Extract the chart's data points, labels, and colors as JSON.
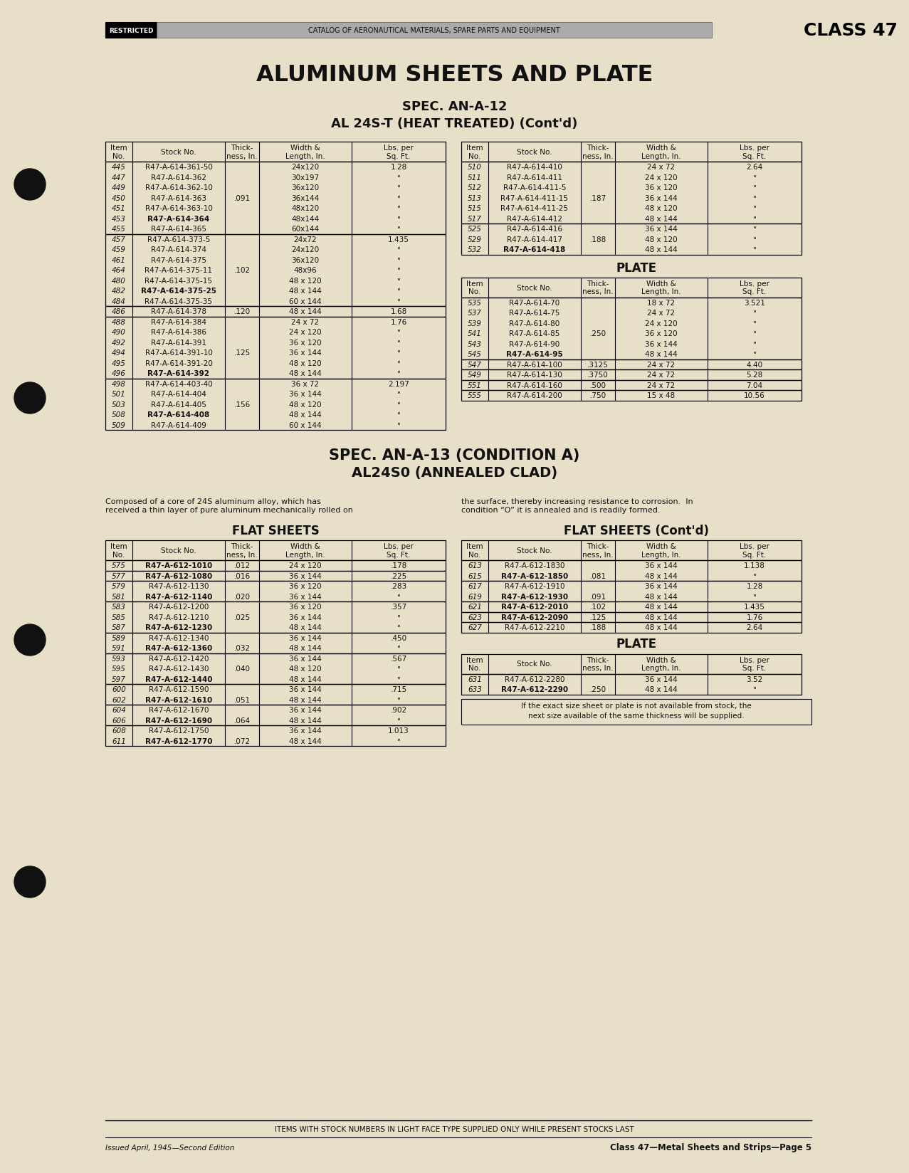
{
  "page_bg": "#e8dfc8",
  "title": "ALUMINUM SHEETS AND PLATE",
  "spec_line1": "SPEC. AN-A-12",
  "spec_line2": "AL 24S-T (HEAT TREATED) (Cont'd)",
  "spec2_line1": "SPEC. AN-A-13 (CONDITION A)",
  "spec2_line2": "AL24S0 (ANNEALED CLAD)",
  "footer_line1": "ITEMS WITH STOCK NUMBERS IN LIGHT FACE TYPE SUPPLIED ONLY WHILE PRESENT STOCKS LAST",
  "footer_line2": "Issued April, 1945—Second Edition",
  "footer_line3": "Class 47—Metal Sheets and Strips—Page 5",
  "desc_left": "Composed of a core of 24S aluminum alloy, which has\nreceived a thin layer of pure aluminum mechanically rolled on",
  "desc_right": "the surface, thereby increasing resistance to corrosion.  In\ncondition “O” it is annealed and is readily formed.",
  "col_headers": [
    "Item\nNo.",
    "Stock No.",
    "Thick-\nness, In.",
    "Width &\nLength, In.",
    "Lbs. per\nSq. Ft."
  ],
  "left_groups_top": [
    {
      "thickness": ".091",
      "rows": [
        [
          "445",
          "R47-A-614-361-50",
          "24x120",
          "1.28"
        ],
        [
          "447",
          "R47-A-614-362",
          "30x197",
          "\""
        ],
        [
          "449",
          "R47-A-614-362-10",
          "36x120",
          "\""
        ],
        [
          "450",
          "R47-A-614-363",
          "36x144",
          "\""
        ],
        [
          "451",
          "R47-A-614-363-10",
          "48x120",
          "\""
        ],
        [
          "453",
          "R47-A-614-364",
          "48x144",
          "\""
        ],
        [
          "455",
          "R47-A-614-365",
          "60x144",
          "\""
        ]
      ],
      "bold_items": [
        "453"
      ]
    },
    {
      "thickness": ".102",
      "rows": [
        [
          "457",
          "R47-A-614-373-5",
          "24x72",
          "1.435"
        ],
        [
          "459",
          "R47-A-614-374",
          "24x120",
          "\""
        ],
        [
          "461",
          "R47-A-614-375",
          "36x120",
          "\""
        ],
        [
          "464",
          "R47-A-614-375-11",
          "48x96",
          "\""
        ],
        [
          "480",
          "R47-A-614-375-15",
          "48 x 120",
          "\""
        ],
        [
          "482",
          "R47-A-614-375-25",
          "48 x 144",
          "\""
        ],
        [
          "484",
          "R47-A-614-375-35",
          "60 x 144",
          "\""
        ]
      ],
      "bold_items": [
        "482"
      ]
    },
    {
      "thickness": ".120",
      "rows": [
        [
          "486",
          "R47-A-614-378",
          "48 x 144",
          "1.68"
        ]
      ],
      "bold_items": []
    },
    {
      "thickness": ".125",
      "rows": [
        [
          "488",
          "R47-A-614-384",
          "24 x 72",
          "1.76"
        ],
        [
          "490",
          "R47-A-614-386",
          "24 x 120",
          "\""
        ],
        [
          "492",
          "R47-A-614-391",
          "36 x 120",
          "\""
        ],
        [
          "494",
          "R47-A-614-391-10",
          "36 x 144",
          "\""
        ],
        [
          "495",
          "R47-A-614-391-20",
          "48 x 120",
          "\""
        ],
        [
          "496",
          "R47-A-614-392",
          "48 x 144",
          "\""
        ]
      ],
      "bold_items": [
        "496"
      ]
    },
    {
      "thickness": ".156",
      "rows": [
        [
          "498",
          "R47-A-614-403-40",
          "36 x 72",
          "2.197"
        ],
        [
          "501",
          "R47-A-614-404",
          "36 x 144",
          "\""
        ],
        [
          "503",
          "R47-A-614-405",
          "48 x 120",
          "\""
        ],
        [
          "508",
          "R47-A-614-408",
          "48 x 144",
          "\""
        ],
        [
          "509",
          "R47-A-614-409",
          "60 x 144",
          "\""
        ]
      ],
      "bold_items": [
        "508"
      ]
    }
  ],
  "right_groups_top": [
    {
      "thickness": ".187",
      "rows": [
        [
          "510",
          "R47-A-614-410",
          "24 x 72",
          "2.64"
        ],
        [
          "511",
          "R47-A-614-411",
          "24 x 120",
          "\""
        ],
        [
          "512",
          "R47-A-614-411-5",
          "36 x 120",
          "\""
        ],
        [
          "513",
          "R47-A-614-411-15",
          "36 x 144",
          "\""
        ],
        [
          "515",
          "R47-A-614-411-25",
          "48 x 120",
          "\""
        ],
        [
          "517",
          "R47-A-614-412",
          "48 x 144",
          "\""
        ]
      ],
      "bold_items": []
    },
    {
      "thickness": ".188",
      "rows": [
        [
          "525",
          "R47-A-614-416",
          "36 x 144",
          "\""
        ],
        [
          "529",
          "R47-A-614-417",
          "48 x 120",
          "\""
        ],
        [
          "532",
          "R47-A-614-418",
          "48 x 144",
          "\""
        ]
      ],
      "bold_items": [
        "532"
      ]
    }
  ],
  "plate_right_groups": [
    {
      "thickness": ".250",
      "rows": [
        [
          "535",
          "R47-A-614-70",
          "18 x 72",
          "3.521"
        ],
        [
          "537",
          "R47-A-614-75",
          "24 x 72",
          "\""
        ],
        [
          "539",
          "R47-A-614-80",
          "24 x 120",
          "\""
        ],
        [
          "541",
          "R47-A-614-85",
          "36 x 120",
          "\""
        ],
        [
          "543",
          "R47-A-614-90",
          "36 x 144",
          "\""
        ],
        [
          "545",
          "R47-A-614-95",
          "48 x 144",
          "\""
        ]
      ],
      "bold_items": [
        "545"
      ]
    },
    {
      "thickness": ".3125",
      "rows": [
        [
          "547",
          "R47-A-614-100",
          "24 x 72",
          "4.40"
        ]
      ],
      "bold_items": []
    },
    {
      "thickness": ".3750",
      "rows": [
        [
          "549",
          "R47-A-614-130",
          "24 x 72",
          "5.28"
        ]
      ],
      "bold_items": []
    },
    {
      "thickness": ".500",
      "rows": [
        [
          "551",
          "R47-A-614-160",
          "24 x 72",
          "7.04"
        ]
      ],
      "bold_items": []
    },
    {
      "thickness": ".750",
      "rows": [
        [
          "555",
          "R47-A-614-200",
          "15 x 48",
          "10.56"
        ]
      ],
      "bold_items": []
    }
  ],
  "flat_left_groups": [
    {
      "thickness": ".012",
      "rows": [
        [
          "575",
          "R47-A-612-1010",
          "24 x 120",
          ".178"
        ]
      ],
      "bold_items": [
        "575"
      ]
    },
    {
      "thickness": ".016",
      "rows": [
        [
          "577",
          "R47-A-612-1080",
          "36 x 144",
          ".225"
        ]
      ],
      "bold_items": [
        "577"
      ]
    },
    {
      "thickness": ".020",
      "rows": [
        [
          "579",
          "R47-A-612-1130",
          "36 x 120",
          ".283"
        ],
        [
          "581",
          "R47-A-612-1140",
          "36 x 144",
          "\""
        ]
      ],
      "bold_items": [
        "581"
      ]
    },
    {
      "thickness": ".025",
      "rows": [
        [
          "583",
          "R47-A-612-1200",
          "36 x 120",
          ".357"
        ],
        [
          "585",
          "R47-A-612-1210",
          "36 x 144",
          "\""
        ],
        [
          "587",
          "R47-A-612-1230",
          "48 x 144",
          "\""
        ]
      ],
      "bold_items": [
        "587"
      ]
    },
    {
      "thickness": ".032",
      "rows": [
        [
          "589",
          "R47-A-612-1340",
          "36 x 144",
          ".450"
        ],
        [
          "591",
          "R47-A-612-1360",
          "48 x 144",
          "\""
        ]
      ],
      "bold_items": [
        "591"
      ]
    },
    {
      "thickness": ".040",
      "rows": [
        [
          "593",
          "R47-A-612-1420",
          "36 x 144",
          ".567"
        ],
        [
          "595",
          "R47-A-612-1430",
          "48 x 120",
          "\""
        ],
        [
          "597",
          "R47-A-612-1440",
          "48 x 144",
          "\""
        ]
      ],
      "bold_items": [
        "597"
      ]
    },
    {
      "thickness": ".051",
      "rows": [
        [
          "600",
          "R47-A-612-1590",
          "36 x 144",
          ".715"
        ],
        [
          "602",
          "R47-A-612-1610",
          "48 x 144",
          "\""
        ]
      ],
      "bold_items": [
        "602"
      ]
    },
    {
      "thickness": ".064",
      "rows": [
        [
          "604",
          "R47-A-612-1670",
          "36 x 144",
          ".902"
        ],
        [
          "606",
          "R47-A-612-1690",
          "48 x 144",
          "\""
        ]
      ],
      "bold_items": [
        "606"
      ]
    },
    {
      "thickness": ".072",
      "rows": [
        [
          "608",
          "R47-A-612-1750",
          "36 x 144",
          "1.013"
        ],
        [
          "611",
          "R47-A-612-1770",
          "48 x 144",
          "\""
        ]
      ],
      "bold_items": [
        "611"
      ]
    }
  ],
  "flat_right_groups": [
    {
      "thickness": ".081",
      "rows": [
        [
          "613",
          "R47-A-612-1830",
          "36 x 144",
          "1.138"
        ],
        [
          "615",
          "R47-A-612-1850",
          "48 x 144",
          "\""
        ]
      ],
      "bold_items": [
        "615"
      ]
    },
    {
      "thickness": ".091",
      "rows": [
        [
          "617",
          "R47-A-612-1910",
          "36 x 144",
          "1.28"
        ],
        [
          "619",
          "R47-A-612-1930",
          "48 x 144",
          "\""
        ]
      ],
      "bold_items": [
        "619"
      ]
    },
    {
      "thickness": ".102",
      "rows": [
        [
          "621",
          "R47-A-612-2010",
          "48 x 144",
          "1.435"
        ]
      ],
      "bold_items": [
        "621"
      ]
    },
    {
      "thickness": ".125",
      "rows": [
        [
          "623",
          "R47-A-612-2090",
          "48 x 144",
          "1.76"
        ]
      ],
      "bold_items": [
        "623"
      ]
    },
    {
      "thickness": ".188",
      "rows": [
        [
          "627",
          "R47-A-612-2210",
          "48 x 144",
          "2.64"
        ]
      ],
      "bold_items": []
    }
  ],
  "plate_bottom_groups": [
    {
      "thickness": ".250",
      "rows": [
        [
          "631",
          "R47-A-612-2280",
          "36 x 144",
          "3.52"
        ],
        [
          "633",
          "R47-A-612-2290",
          "48 x 144",
          "\""
        ]
      ],
      "bold_items": [
        "633"
      ]
    }
  ],
  "note_text_line1": "If the exact size sheet or plate is not available from stock, the",
  "note_text_line2": "next size available of the same thickness will be supplied."
}
